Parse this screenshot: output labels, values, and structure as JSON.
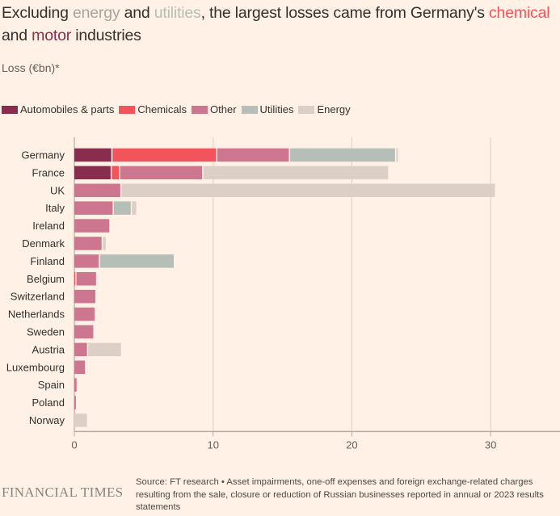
{
  "title": {
    "part1": "Excluding ",
    "energy_word": "energy",
    "part2": " and ",
    "utilities_word": "utilities",
    "part3": ", the largest losses came from Germany's ",
    "chemical_word": "chemical",
    "part4": " and ",
    "motor_word": "motor",
    "part5": " industries"
  },
  "colors": {
    "Automobiles & parts": "#882d4e",
    "Chemicals": "#f2545b",
    "Other": "#cd7690",
    "Utilities": "#b5bfb7",
    "Energy": "#dccfc6",
    "gridline": "#e0d3c9",
    "axis": "#b8aaa0"
  },
  "footer": {
    "logo": "FINANCIAL TIMES",
    "note": "Source: FT research • Asset impairments, one-off expenses and foreign exchange-related charges resulting from the sale, closure or reduction of Russian businesses reported in annual or 2023 results statements"
  },
  "chart_data": {
    "type": "bar",
    "orientation": "horizontal",
    "stacked": true,
    "title": "Excluding energy and utilities, the largest losses came from Germany's chemical and motor industries",
    "ylabel": "Loss (€bn)*",
    "xlabel": "",
    "xlim": [
      0,
      35
    ],
    "xticks": [
      0,
      10,
      20,
      30
    ],
    "grid": true,
    "legend_position": "top-left",
    "categories": [
      "Germany",
      "France",
      "UK",
      "Italy",
      "Ireland",
      "Denmark",
      "Finland",
      "Belgium",
      "Switzerland",
      "Netherlands",
      "Sweden",
      "Austria",
      "Luxembourg",
      "Spain",
      "Poland",
      "Norway"
    ],
    "series": [
      {
        "name": "Automobiles & parts",
        "values": [
          2.75,
          2.7,
          0,
          0,
          0,
          0,
          0,
          0,
          0,
          0,
          0,
          0,
          0,
          0,
          0,
          0
        ]
      },
      {
        "name": "Chemicals",
        "values": [
          7.55,
          0.6,
          0,
          0,
          0,
          0,
          0,
          0.15,
          0,
          0,
          0,
          0,
          0,
          0,
          0,
          0
        ]
      },
      {
        "name": "Other",
        "values": [
          5.25,
          6.0,
          3.4,
          2.85,
          2.6,
          2.05,
          1.85,
          1.5,
          1.6,
          1.55,
          1.45,
          1.0,
          0.85,
          0.25,
          0.2,
          0
        ]
      },
      {
        "name": "Utilities",
        "values": [
          7.65,
          0,
          0,
          1.3,
          0,
          0,
          5.4,
          0,
          0,
          0,
          0,
          0,
          0,
          0,
          0,
          0
        ]
      },
      {
        "name": "Energy",
        "values": [
          0.2,
          13.4,
          27.0,
          0.4,
          0,
          0.3,
          0,
          0,
          0,
          0,
          0,
          2.45,
          0,
          0,
          0,
          1.0
        ]
      }
    ]
  }
}
